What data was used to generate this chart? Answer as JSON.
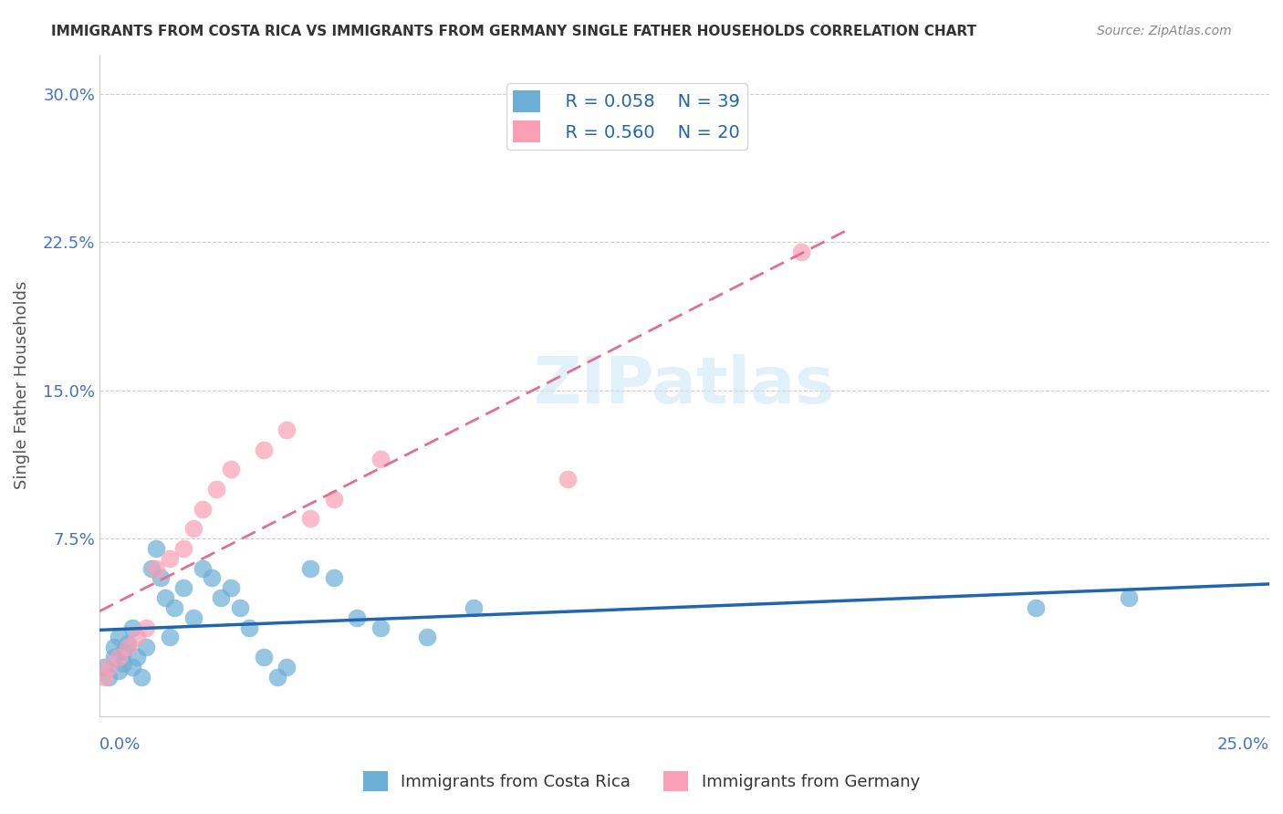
{
  "title": "IMMIGRANTS FROM COSTA RICA VS IMMIGRANTS FROM GERMANY SINGLE FATHER HOUSEHOLDS CORRELATION CHART",
  "source": "Source: ZipAtlas.com",
  "ylabel": "Single Father Households",
  "ytick_values": [
    0.075,
    0.15,
    0.225,
    0.3
  ],
  "ytick_labels": [
    "7.5%",
    "15.0%",
    "22.5%",
    "30.0%"
  ],
  "xlim": [
    0.0,
    0.25
  ],
  "ylim": [
    -0.015,
    0.32
  ],
  "legend_r_costa_rica": "R = 0.058",
  "legend_n_costa_rica": "N = 39",
  "legend_r_germany": "R = 0.560",
  "legend_n_germany": "N = 20",
  "color_costa_rica": "#6baed6",
  "color_germany": "#fa9fb5",
  "color_line_costa_rica": "#2166ac",
  "color_line_germany": "#e07090",
  "costa_rica_x": [
    0.001,
    0.002,
    0.003,
    0.003,
    0.004,
    0.004,
    0.005,
    0.005,
    0.006,
    0.007,
    0.007,
    0.008,
    0.009,
    0.01,
    0.011,
    0.012,
    0.013,
    0.014,
    0.015,
    0.016,
    0.018,
    0.02,
    0.022,
    0.024,
    0.026,
    0.028,
    0.03,
    0.032,
    0.035,
    0.038,
    0.04,
    0.045,
    0.05,
    0.055,
    0.06,
    0.07,
    0.08,
    0.2,
    0.22
  ],
  "costa_rica_y": [
    0.01,
    0.005,
    0.015,
    0.02,
    0.008,
    0.025,
    0.012,
    0.018,
    0.022,
    0.01,
    0.03,
    0.015,
    0.005,
    0.02,
    0.06,
    0.07,
    0.055,
    0.045,
    0.025,
    0.04,
    0.05,
    0.035,
    0.06,
    0.055,
    0.045,
    0.05,
    0.04,
    0.03,
    0.015,
    0.005,
    0.01,
    0.06,
    0.055,
    0.035,
    0.03,
    0.025,
    0.04,
    0.04,
    0.045
  ],
  "germany_x": [
    0.001,
    0.002,
    0.004,
    0.006,
    0.008,
    0.01,
    0.012,
    0.015,
    0.018,
    0.02,
    0.022,
    0.025,
    0.028,
    0.035,
    0.04,
    0.045,
    0.05,
    0.06,
    0.1,
    0.15
  ],
  "germany_y": [
    0.005,
    0.01,
    0.015,
    0.02,
    0.025,
    0.03,
    0.06,
    0.065,
    0.07,
    0.08,
    0.09,
    0.1,
    0.11,
    0.12,
    0.13,
    0.085,
    0.095,
    0.115,
    0.105,
    0.22
  ]
}
